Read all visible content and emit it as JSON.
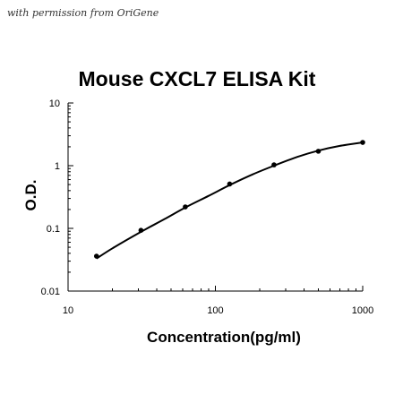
{
  "credit": "with permission from OriGene",
  "chart_data": {
    "type": "line",
    "title": "Mouse CXCL7 ELISA Kit",
    "xlabel": "Concentration(pg/ml)",
    "ylabel": "O.D.",
    "x_scale": "log",
    "y_scale": "log",
    "xlim": [
      10,
      1000
    ],
    "ylim": [
      0.01,
      10
    ],
    "x_ticks": [
      "10",
      "100",
      "1000"
    ],
    "y_ticks": [
      "10",
      "1",
      "0.1",
      "0.01"
    ],
    "grid": false,
    "legend": "none",
    "colors": {
      "line": "#000000",
      "marker": "#000000",
      "axis": "#000000"
    },
    "series": [
      {
        "x": [
          15.6,
          31.25,
          62.5,
          125,
          250,
          500,
          1000
        ],
        "y": [
          0.036,
          0.093,
          0.22,
          0.51,
          1.03,
          1.7,
          2.35
        ]
      }
    ],
    "fit_curve": {
      "x": [
        15.6,
        20,
        31.25,
        45,
        62.5,
        90,
        125,
        180,
        250,
        360,
        500,
        700,
        1000
      ],
      "y": [
        0.033,
        0.048,
        0.088,
        0.14,
        0.215,
        0.33,
        0.49,
        0.73,
        1.0,
        1.38,
        1.74,
        2.07,
        2.35
      ]
    }
  }
}
